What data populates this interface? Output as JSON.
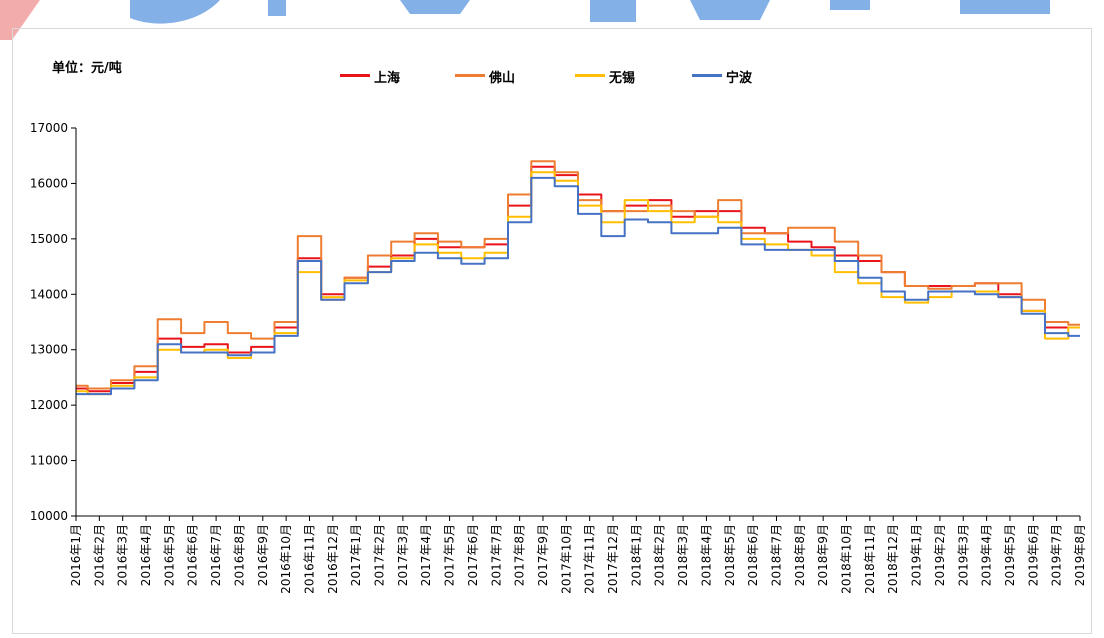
{
  "header": {
    "unit_label": "单位：元/吨"
  },
  "colors": {
    "shanghai": "#e8141a",
    "foshan": "#ee7d31",
    "wuxi": "#ffbf00",
    "ningbo": "#4572c4",
    "axis": "#000000",
    "watermark": "#1f6fd6"
  },
  "chart_data": {
    "type": "line",
    "title": "",
    "xlabel": "",
    "ylabel": "",
    "ylim": [
      10000,
      17000
    ],
    "yticks": [
      10000,
      11000,
      12000,
      13000,
      14000,
      15000,
      16000,
      17000
    ],
    "grid": false,
    "legend_position": "top",
    "categories": [
      "2016年1月",
      "2016年2月",
      "2016年3月",
      "2016年4月",
      "2016年5月",
      "2016年6月",
      "2016年7月",
      "2016年8月",
      "2016年9月",
      "2016年10月",
      "2016年11月",
      "2016年12月",
      "2017年1月",
      "2017年2月",
      "2017年3月",
      "2017年4月",
      "2017年5月",
      "2017年6月",
      "2017年7月",
      "2017年8月",
      "2017年9月",
      "2017年10月",
      "2017年11月",
      "2017年12月",
      "2018年1月",
      "2018年2月",
      "2018年3月",
      "2018年4月",
      "2018年5月",
      "2018年6月",
      "2018年7月",
      "2018年8月",
      "2018年9月",
      "2018年10月",
      "2018年11月",
      "2018年12月",
      "2019年1月",
      "2019年2月",
      "2019年3月",
      "2019年4月",
      "2019年5月",
      "2019年6月",
      "2019年7月",
      "2019年8月"
    ],
    "series": [
      {
        "name": "上海",
        "color": "#e8141a",
        "values": [
          12300,
          12250,
          12400,
          12600,
          13200,
          13050,
          13100,
          12950,
          13050,
          13400,
          14650,
          14000,
          14300,
          14500,
          14700,
          15000,
          14850,
          14850,
          14900,
          15600,
          16300,
          16150,
          15800,
          15500,
          15600,
          15700,
          15400,
          15500,
          15500,
          15200,
          15100,
          14950,
          14850,
          14700,
          14600,
          14400,
          14150,
          14150,
          14150,
          14200,
          14000,
          13700,
          13400,
          13400
        ]
      },
      {
        "name": "佛山",
        "color": "#ee7d31",
        "values": [
          12350,
          12300,
          12450,
          12700,
          13550,
          13300,
          13500,
          13300,
          13200,
          13500,
          15050,
          13900,
          14300,
          14700,
          14950,
          15100,
          14950,
          14850,
          15000,
          15800,
          16400,
          16200,
          15700,
          15500,
          15500,
          15600,
          15500,
          15400,
          15700,
          15100,
          15100,
          15200,
          15200,
          14950,
          14700,
          14400,
          14150,
          14100,
          14150,
          14200,
          14200,
          13900,
          13500,
          13450
        ]
      },
      {
        "name": "无锡",
        "color": "#ffbf00",
        "values": [
          12250,
          12200,
          12350,
          12500,
          13000,
          12950,
          13000,
          12850,
          12950,
          13300,
          14400,
          13950,
          14250,
          14400,
          14650,
          14900,
          14750,
          14650,
          14750,
          15400,
          16200,
          16050,
          15600,
          15300,
          15700,
          15500,
          15300,
          15400,
          15300,
          15000,
          14900,
          14800,
          14700,
          14400,
          14200,
          13950,
          13850,
          13950,
          14050,
          14050,
          13950,
          13700,
          13200,
          13400
        ]
      },
      {
        "name": "宁波",
        "color": "#4572c4",
        "values": [
          12200,
          12200,
          12300,
          12450,
          13100,
          12950,
          12950,
          12900,
          12950,
          13250,
          14600,
          13900,
          14200,
          14400,
          14600,
          14750,
          14650,
          14550,
          14650,
          15300,
          16100,
          15950,
          15450,
          15050,
          15350,
          15300,
          15100,
          15100,
          15200,
          14900,
          14800,
          14800,
          14800,
          14600,
          14300,
          14050,
          13900,
          14050,
          14050,
          14000,
          13950,
          13650,
          13300,
          13250
        ]
      }
    ]
  }
}
